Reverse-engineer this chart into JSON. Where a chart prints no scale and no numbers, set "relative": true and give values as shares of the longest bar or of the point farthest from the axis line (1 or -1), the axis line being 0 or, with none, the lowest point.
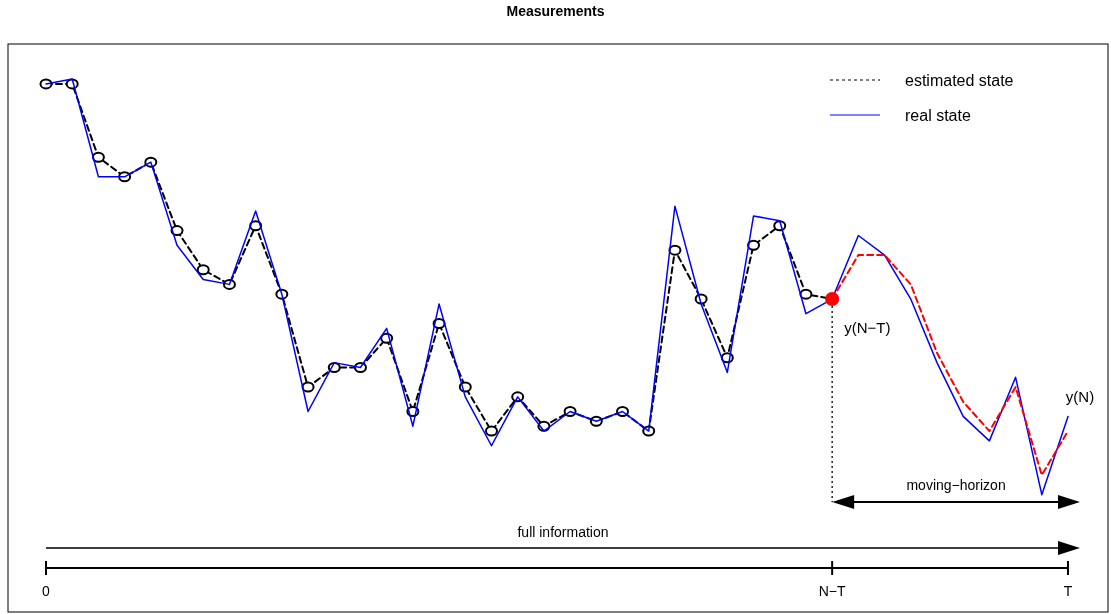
{
  "chart_data": {
    "type": "line",
    "title": "Measurements",
    "relative": true,
    "tick_labels": "x",
    "legend": "top right",
    "categories": [
      "0",
      null,
      null,
      null,
      null,
      null,
      null,
      null,
      null,
      null,
      null,
      null,
      null,
      null,
      null,
      null,
      null,
      null,
      null,
      null,
      null,
      null,
      null,
      null,
      null,
      null,
      null,
      null,
      null,
      null,
      "N−T",
      null,
      null,
      null,
      null,
      null,
      null,
      null,
      null,
      "T"
    ],
    "series": [
      {
        "name": "estimated state",
        "color": "#000000",
        "line_style": "dashed",
        "marker": "circle",
        "values": [
          0.99,
          0.99,
          0.84,
          0.8,
          0.83,
          0.69,
          0.61,
          0.58,
          0.7,
          0.56,
          0.37,
          0.41,
          0.41,
          0.47,
          0.32,
          0.5,
          0.37,
          0.28,
          0.35,
          0.29,
          0.32,
          0.3,
          0.32,
          0.28,
          0.65,
          0.55,
          0.43,
          0.66,
          0.7,
          0.56,
          0.55,
          null,
          null,
          null,
          null,
          null,
          null,
          null,
          null,
          null
        ]
      },
      {
        "name": "real state",
        "color": "#0000ff",
        "line_style": "solid",
        "marker": "none",
        "values": [
          0.99,
          1,
          0.8,
          0.8,
          0.83,
          0.66,
          0.59,
          0.58,
          0.73,
          0.56,
          0.32,
          0.42,
          0.41,
          0.49,
          0.29,
          0.54,
          0.35,
          0.25,
          0.35,
          0.28,
          0.32,
          0.3,
          0.32,
          0.28,
          0.74,
          0.54,
          0.4,
          0.72,
          0.71,
          0.52,
          0.55,
          0.68,
          0.64,
          0.55,
          0.42,
          0.31,
          0.26,
          0.39,
          0.15,
          0.31
        ]
      },
      {
        "color": "#ff0000",
        "line_style": "dashed",
        "marker": "none",
        "values": [
          null,
          null,
          null,
          null,
          null,
          null,
          null,
          null,
          null,
          null,
          null,
          null,
          null,
          null,
          null,
          null,
          null,
          null,
          null,
          null,
          null,
          null,
          null,
          null,
          null,
          null,
          null,
          null,
          null,
          null,
          0.55,
          0.64,
          0.64,
          0.58,
          0.44,
          0.34,
          0.28,
          0.37,
          0.19,
          0.28
        ]
      },
      {
        "type": "scatter",
        "color": "#ff0000",
        "marker": "circle",
        "x": [
          "N−T"
        ],
        "values": [
          0.55
        ]
      }
    ],
    "ref_lines": [
      {
        "axis": "x",
        "value": "N−T",
        "color": "#000000",
        "line_style": "dotted"
      }
    ],
    "annotations": [
      {
        "text": "y(N−T)",
        "x": "N−T",
        "y": 0.55
      },
      {
        "text": "y(N)",
        "x": "T",
        "y": 0.31
      },
      "moving−horizon",
      "full information"
    ]
  }
}
